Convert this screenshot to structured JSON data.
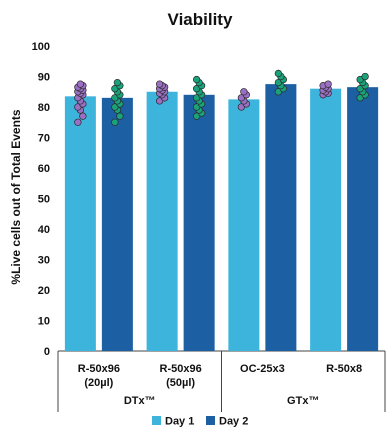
{
  "chart_data": {
    "type": "bar",
    "title": "Viability",
    "xlabel": "",
    "ylabel": "%Live cells out of Total Events",
    "ylim": [
      0,
      100
    ],
    "yticks": [
      0,
      10,
      20,
      30,
      40,
      50,
      60,
      70,
      80,
      90,
      100
    ],
    "grid": false,
    "legend_position": "bottom",
    "categories": [
      "R-50x96\n(20µl)",
      "R-50x96\n(50µl)",
      "OC-25x3",
      "R-50x8"
    ],
    "groups": [
      {
        "label": "DTx™",
        "categories": [
          0,
          1
        ]
      },
      {
        "label": "GTx™",
        "categories": [
          2,
          3
        ]
      }
    ],
    "series": [
      {
        "name": "Day 1",
        "color": "#3cb4dc",
        "point_color": "#9b6fc3",
        "values": [
          83.5,
          85.0,
          82.5,
          86.0
        ],
        "points": [
          [
            75,
            77,
            79,
            80,
            81,
            82,
            83,
            84,
            84.5,
            85,
            85.5,
            86,
            86.5,
            87,
            87.5
          ],
          [
            82,
            83,
            84,
            84.5,
            85,
            85.5,
            86,
            86.5,
            87,
            87.5
          ],
          [
            80,
            81,
            82,
            83,
            84,
            85
          ],
          [
            84,
            84.5,
            85,
            85.5,
            86,
            86.5,
            87,
            87.5
          ]
        ]
      },
      {
        "name": "Day 2",
        "color": "#1c5fa3",
        "point_color": "#1aa37a",
        "values": [
          83.0,
          84.0,
          87.5,
          86.5
        ],
        "points": [
          [
            75,
            77,
            79,
            80,
            81,
            82,
            83,
            84,
            85,
            86,
            87,
            88
          ],
          [
            77,
            78,
            79,
            80,
            81,
            82,
            83,
            84,
            85,
            86,
            87,
            88,
            89
          ],
          [
            85,
            86,
            87,
            88,
            89,
            90,
            91
          ],
          [
            83,
            84,
            85,
            86,
            87,
            88,
            89,
            90
          ]
        ]
      }
    ]
  }
}
